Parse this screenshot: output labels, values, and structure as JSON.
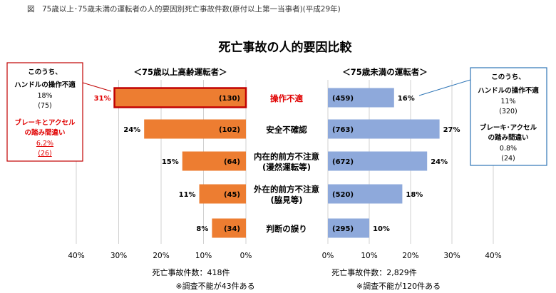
{
  "figure_title": "図　75歳以上･75歳未満の運転者の人的要因別死亡事故件数(原付以上第一当事者)(平成29年)",
  "chart_data": {
    "type": "bar",
    "title": "死亡事故の人的要因比較",
    "categories": [
      {
        "lines": [
          "操作不適"
        ],
        "highlight": true
      },
      {
        "lines": [
          "安全不確認"
        ],
        "highlight": false
      },
      {
        "lines": [
          "内在的前方不注意",
          "(漫然運転等)"
        ],
        "highlight": false
      },
      {
        "lines": [
          "外在的前方不注意",
          "(脇見等)"
        ],
        "highlight": false
      },
      {
        "lines": [
          "判断の誤り"
        ],
        "highlight": false
      }
    ],
    "series": [
      {
        "name": "＜75歳以上高齢運転者＞",
        "side": "left",
        "color": "#ED7D31",
        "percent": [
          31,
          24,
          15,
          11,
          8
        ],
        "percent_labels": [
          "31%",
          "24%",
          "15%",
          "11%",
          "8%"
        ],
        "counts": [
          "(130)",
          "(102)",
          "(64)",
          "(45)",
          "(34)"
        ],
        "total_label": "死亡事故件数：418件",
        "note": "※調査不能が43件ある"
      },
      {
        "name": "＜75歳未満の運転者＞",
        "side": "right",
        "color": "#8EA9DB",
        "percent": [
          16,
          27,
          24,
          18,
          10
        ],
        "percent_labels": [
          "16%",
          "27%",
          "24%",
          "18%",
          "10%"
        ],
        "counts": [
          "(459)",
          "(763)",
          "(672)",
          "(520)",
          "(295)"
        ],
        "total_label": "死亡事故件数：2,829件",
        "note": "※調査不能が120件ある"
      }
    ],
    "xlim": [
      0,
      40
    ],
    "ticks_left": [
      "40%",
      "30%",
      "20%",
      "10%",
      "0%"
    ],
    "ticks_right": [
      "0%",
      "10%",
      "20%",
      "30%",
      "40%"
    ],
    "grid": true,
    "annotations": {
      "left_box": {
        "color": "#C00000",
        "l1": "このうち、",
        "l2": "ハンドルの操作不適",
        "l3": "18%",
        "l4": "(75)",
        "r1": "ブレーキとアクセル",
        "r2": "の踏み間違い",
        "r3": "6.2%",
        "r4": "(26)"
      },
      "right_box": {
        "color": "#2E75B6",
        "l1": "このうち、",
        "l2": "ハンドルの操作不適",
        "l3": "11%",
        "l4": "(320)",
        "l5": "ブレーキ･アクセル",
        "l6": "の踏み間違い",
        "l7": "0.8%",
        "l8": "(24)"
      }
    }
  }
}
